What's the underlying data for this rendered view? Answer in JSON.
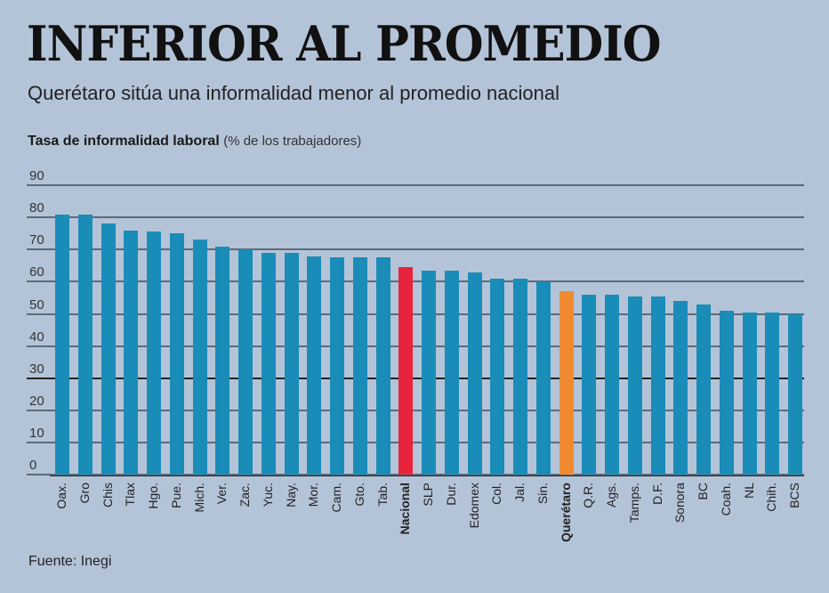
{
  "header": {
    "title": "INFERIOR AL PROMEDIO",
    "subtitle": "Querétaro sitúa una informalidad menor al promedio nacional",
    "axis_title_bold": "Tasa de informalidad laboral",
    "axis_title_unit": "(% de los trabajadores)"
  },
  "footer": {
    "source": "Fuente: Inegi"
  },
  "colors": {
    "default": "#1a8cb8",
    "nacional": "#e8243c",
    "queretaro": "#f08a30",
    "background": "#b4c4d8"
  },
  "chart_data": {
    "type": "bar",
    "title": "INFERIOR AL PROMEDIO",
    "subtitle": "Querétaro sitúa una informalidad menor al promedio nacional",
    "ylabel": "Tasa de informalidad laboral (% de los trabajadores)",
    "xlabel": "",
    "ylim": [
      0,
      90
    ],
    "yticks": [
      0,
      10,
      20,
      30,
      40,
      50,
      60,
      70,
      80,
      90
    ],
    "grid": true,
    "categories": [
      "Oax.",
      "Gro",
      "Chis",
      "Tlax",
      "Hgo.",
      "Pue.",
      "Mich.",
      "Ver.",
      "Zac.",
      "Yuc.",
      "Nay.",
      "Mor.",
      "Cam.",
      "Gto.",
      "Tab.",
      "Nacional",
      "SLP",
      "Dur.",
      "Edomex",
      "Col.",
      "Jal.",
      "Sin.",
      "Querétaro",
      "Q.R.",
      "Ags.",
      "Tamps.",
      "D.F.",
      "Sonora",
      "BC",
      "Coah.",
      "NL",
      "Chih.",
      "BCS"
    ],
    "values": [
      81,
      81,
      78,
      76,
      75.5,
      75,
      73,
      71,
      70,
      69,
      69,
      68,
      67.5,
      67.5,
      67.5,
      64.5,
      63.5,
      63.5,
      63,
      61,
      61,
      60,
      57,
      56,
      56,
      55.5,
      55.5,
      54,
      53,
      51,
      50.5,
      50.5,
      50
    ],
    "highlight": {
      "Nacional": "#e8243c",
      "Querétaro": "#f08a30"
    },
    "source": "Fuente: Inegi"
  }
}
